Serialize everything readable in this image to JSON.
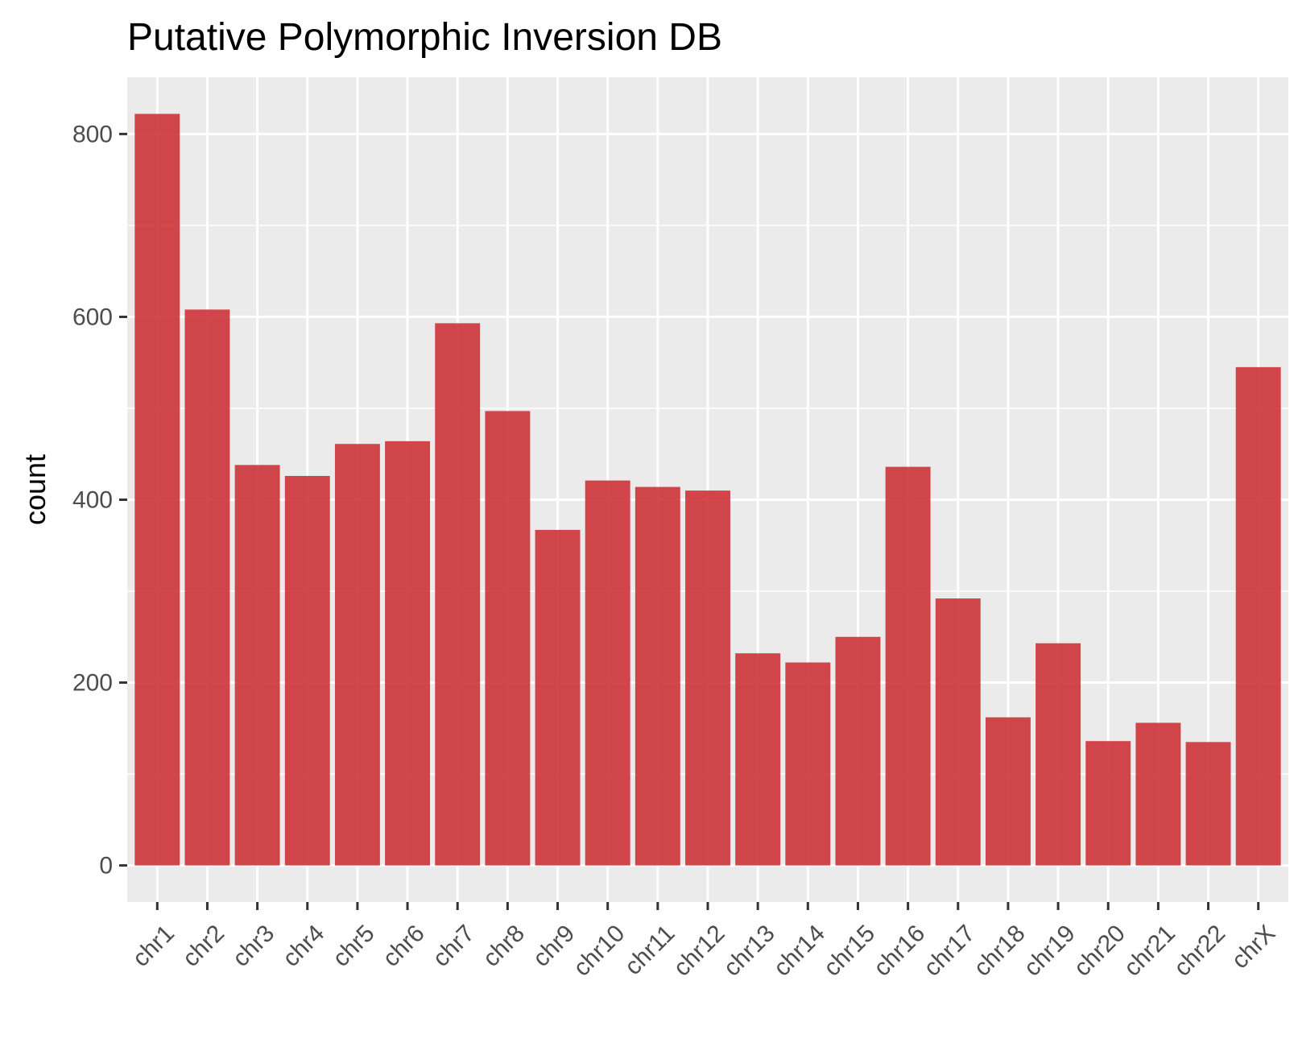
{
  "chart_data": {
    "type": "bar",
    "title": "Putative Polymorphic Inversion DB",
    "xlabel": "",
    "ylabel": "count",
    "categories": [
      "chr1",
      "chr2",
      "chr3",
      "chr4",
      "chr5",
      "chr6",
      "chr7",
      "chr8",
      "chr9",
      "chr10",
      "chr11",
      "chr12",
      "chr13",
      "chr14",
      "chr15",
      "chr16",
      "chr17",
      "chr18",
      "chr19",
      "chr20",
      "chr21",
      "chr22",
      "chrX"
    ],
    "values": [
      822,
      608,
      438,
      426,
      461,
      464,
      593,
      497,
      367,
      421,
      414,
      410,
      232,
      222,
      250,
      436,
      292,
      162,
      243,
      136,
      156,
      135,
      545
    ],
    "ylim": [
      -40,
      862
    ],
    "yticks": [
      0,
      200,
      400,
      600,
      800
    ],
    "grid": true,
    "legend": "none",
    "colors": {
      "bar": "#cd3338",
      "panel": "#ebebeb",
      "gridline": "#ffffff",
      "tick": "#333333",
      "tick_label": "#4d4d4d",
      "text": "#000000"
    }
  }
}
